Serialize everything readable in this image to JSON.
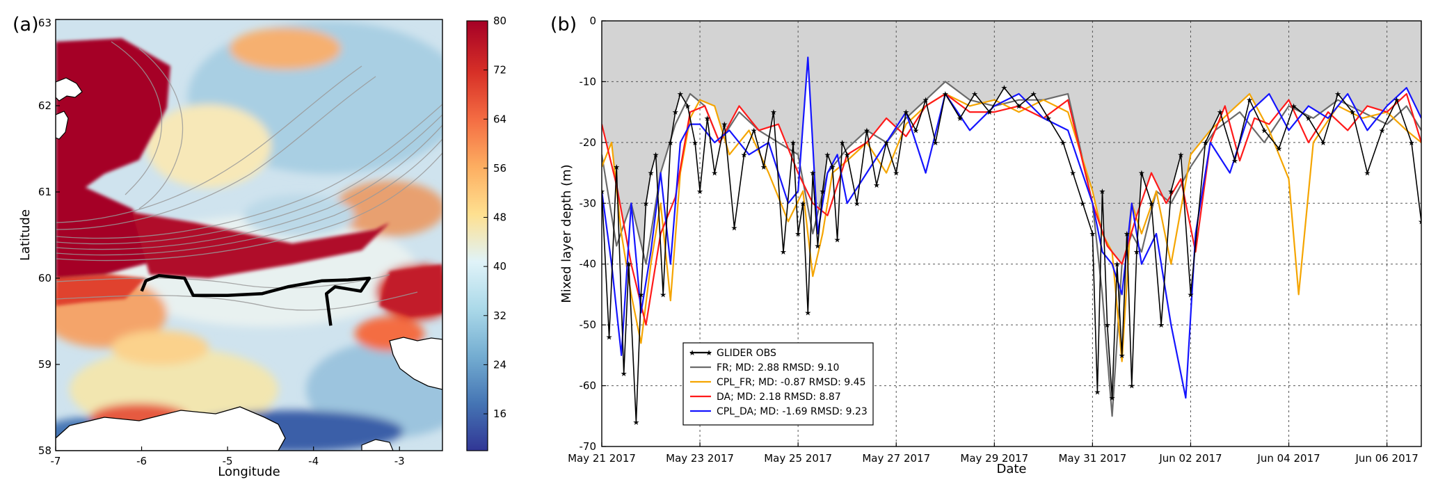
{
  "chart_data": [
    {
      "panel_label": "(a)",
      "type": "heatmap",
      "title": "",
      "xlabel": "Longitude",
      "ylabel": "Latitude",
      "xlim": [
        -7,
        -2.5
      ],
      "ylim": [
        58,
        63
      ],
      "xticks": [
        -7,
        -6,
        -5,
        -4,
        -3
      ],
      "yticks": [
        58,
        59,
        60,
        61,
        62,
        63
      ],
      "colorbar": {
        "min": 10,
        "max": 80,
        "ticks": [
          16,
          24,
          32,
          40,
          48,
          56,
          64,
          72,
          80
        ],
        "colors": [
          "#313695",
          "#4575b4",
          "#74add1",
          "#abd9e9",
          "#e0f3f8",
          "#fee090",
          "#fdae61",
          "#f46d43",
          "#d73027",
          "#a50026"
        ]
      },
      "glider_track": [
        [
          -6.0,
          59.85
        ],
        [
          -5.95,
          59.97
        ],
        [
          -5.8,
          60.03
        ],
        [
          -5.5,
          60.0
        ],
        [
          -5.45,
          59.9
        ],
        [
          -5.4,
          59.8
        ],
        [
          -5.0,
          59.8
        ],
        [
          -4.6,
          59.82
        ],
        [
          -4.3,
          59.9
        ],
        [
          -3.9,
          59.97
        ],
        [
          -3.6,
          59.98
        ],
        [
          -3.35,
          60.0
        ],
        [
          -3.45,
          59.85
        ],
        [
          -3.75,
          59.9
        ],
        [
          -3.85,
          59.82
        ],
        [
          -3.8,
          59.45
        ]
      ]
    },
    {
      "panel_label": "(b)",
      "type": "line",
      "title": "",
      "xlabel": "Date",
      "ylabel": "Mixed layer depth (m)",
      "ylim": [
        -70,
        0
      ],
      "yticks": [
        0,
        -10,
        -20,
        -30,
        -40,
        -50,
        -60,
        -70
      ],
      "xlim": [
        0,
        16.7
      ],
      "xtick_positions": [
        0,
        2,
        4,
        6,
        8,
        10,
        12,
        14,
        16
      ],
      "xtick_labels": [
        "May 21 2017",
        "May 23 2017",
        "May 25 2017",
        "May 27 2017",
        "May 29 2017",
        "May 31 2017",
        "Jun 02 2017",
        "Jun 04 2017",
        "Jun 06 2017"
      ],
      "x_units": "days since May 21 2017",
      "grid": true,
      "legend_position": "lower-left",
      "series": [
        {
          "name": "GLIDER OBS",
          "color": "#000000",
          "marker": "star",
          "x": [
            0.0,
            0.15,
            0.3,
            0.45,
            0.55,
            0.7,
            0.8,
            0.9,
            1.0,
            1.1,
            1.25,
            1.4,
            1.5,
            1.6,
            1.75,
            1.9,
            2.0,
            2.15,
            2.3,
            2.5,
            2.7,
            2.9,
            3.1,
            3.3,
            3.5,
            3.7,
            3.9,
            4.0,
            4.1,
            4.2,
            4.3,
            4.4,
            4.5,
            4.6,
            4.7,
            4.8,
            4.9,
            5.0,
            5.2,
            5.4,
            5.6,
            5.8,
            6.0,
            6.2,
            6.4,
            6.6,
            6.8,
            7.0,
            7.3,
            7.6,
            7.9,
            8.2,
            8.5,
            8.8,
            9.1,
            9.4,
            9.6,
            9.8,
            10.0,
            10.1,
            10.2,
            10.3,
            10.4,
            10.5,
            10.6,
            10.7,
            10.8,
            10.9,
            11.0,
            11.2,
            11.4,
            11.6,
            11.8,
            12.0,
            12.3,
            12.6,
            12.9,
            13.2,
            13.5,
            13.8,
            14.1,
            14.4,
            14.7,
            15.0,
            15.3,
            15.6,
            15.9,
            16.2,
            16.5,
            16.7
          ],
          "y": [
            -28,
            -52,
            -24,
            -58,
            -40,
            -66,
            -45,
            -30,
            -25,
            -22,
            -45,
            -20,
            -15,
            -12,
            -14,
            -20,
            -28,
            -16,
            -25,
            -17,
            -34,
            -22,
            -18,
            -24,
            -15,
            -38,
            -20,
            -35,
            -30,
            -48,
            -25,
            -37,
            -28,
            -22,
            -24,
            -36,
            -20,
            -22,
            -30,
            -18,
            -27,
            -20,
            -25,
            -15,
            -18,
            -13,
            -20,
            -12,
            -16,
            -12,
            -15,
            -11,
            -14,
            -12,
            -16,
            -20,
            -25,
            -30,
            -35,
            -61,
            -28,
            -50,
            -62,
            -40,
            -55,
            -35,
            -60,
            -38,
            -25,
            -30,
            -50,
            -28,
            -22,
            -45,
            -20,
            -15,
            -23,
            -13,
            -18,
            -21,
            -14,
            -16,
            -20,
            -12,
            -15,
            -25,
            -18,
            -13,
            -20,
            -33
          ]
        },
        {
          "name": "FR; MD: 2.88 RMSD: 9.10",
          "color": "#6b6b6b",
          "marker": "",
          "x": [
            0.0,
            0.3,
            0.6,
            0.9,
            1.2,
            1.5,
            1.8,
            2.1,
            2.4,
            2.8,
            3.2,
            3.6,
            4.0,
            4.3,
            4.6,
            5.0,
            5.4,
            5.8,
            6.2,
            6.6,
            7.0,
            7.5,
            8.0,
            8.5,
            9.0,
            9.5,
            10.0,
            10.2,
            10.4,
            10.6,
            10.8,
            11.0,
            11.3,
            11.6,
            12.0,
            12.5,
            13.0,
            13.5,
            14.0,
            14.5,
            15.0,
            15.5,
            16.0,
            16.4,
            16.7
          ],
          "y": [
            -22,
            -37,
            -30,
            -40,
            -25,
            -17,
            -12,
            -14,
            -20,
            -15,
            -18,
            -20,
            -22,
            -35,
            -25,
            -21,
            -18,
            -20,
            -16,
            -13,
            -10,
            -13,
            -14,
            -13,
            -13,
            -12,
            -30,
            -45,
            -65,
            -40,
            -35,
            -38,
            -28,
            -30,
            -24,
            -18,
            -15,
            -20,
            -14,
            -16,
            -13,
            -15,
            -17,
            -14,
            -18
          ]
        },
        {
          "name": "CPL_FR; MD: -0.87 RMSD: 9.45",
          "color": "#f5a500",
          "marker": "",
          "x": [
            0.0,
            0.2,
            0.4,
            0.6,
            0.8,
            1.0,
            1.2,
            1.4,
            1.6,
            1.8,
            2.0,
            2.3,
            2.6,
            3.0,
            3.4,
            3.8,
            4.1,
            4.3,
            4.5,
            4.7,
            5.0,
            5.4,
            5.8,
            6.2,
            6.6,
            7.0,
            7.5,
            8.0,
            8.5,
            9.0,
            9.5,
            10.0,
            10.2,
            10.4,
            10.6,
            10.8,
            11.0,
            11.3,
            11.6,
            12.0,
            12.4,
            12.8,
            13.2,
            13.6,
            14.0,
            14.2,
            14.5,
            15.0,
            15.5,
            16.0,
            16.4,
            16.7
          ],
          "y": [
            -24,
            -20,
            -35,
            -45,
            -53,
            -40,
            -30,
            -46,
            -25,
            -16,
            -13,
            -14,
            -22,
            -18,
            -25,
            -33,
            -28,
            -42,
            -35,
            -25,
            -23,
            -20,
            -25,
            -17,
            -14,
            -12,
            -14,
            -13,
            -15,
            -13,
            -15,
            -28,
            -35,
            -38,
            -56,
            -30,
            -35,
            -28,
            -40,
            -22,
            -18,
            -15,
            -12,
            -18,
            -26,
            -45,
            -20,
            -14,
            -16,
            -15,
            -18,
            -20
          ]
        },
        {
          "name": "DA; MD: 2.18 RMSD: 8.87",
          "color": "#ff1a1a",
          "marker": "",
          "x": [
            0.0,
            0.3,
            0.6,
            0.9,
            1.2,
            1.5,
            1.8,
            2.1,
            2.4,
            2.8,
            3.2,
            3.6,
            4.0,
            4.3,
            4.6,
            5.0,
            5.4,
            5.8,
            6.2,
            6.6,
            7.0,
            7.5,
            8.0,
            8.5,
            9.0,
            9.5,
            10.0,
            10.3,
            10.6,
            10.9,
            11.2,
            11.5,
            11.8,
            12.1,
            12.4,
            12.7,
            13.0,
            13.3,
            13.6,
            14.0,
            14.4,
            14.8,
            15.2,
            15.6,
            16.0,
            16.4,
            16.7
          ],
          "y": [
            -17,
            -27,
            -40,
            -50,
            -35,
            -29,
            -15,
            -14,
            -20,
            -14,
            -18,
            -17,
            -25,
            -30,
            -32,
            -22,
            -20,
            -16,
            -19,
            -14,
            -12,
            -15,
            -15,
            -14,
            -16,
            -13,
            -30,
            -37,
            -40,
            -32,
            -25,
            -30,
            -26,
            -38,
            -20,
            -14,
            -23,
            -16,
            -17,
            -13,
            -20,
            -15,
            -18,
            -14,
            -15,
            -12,
            -20
          ]
        },
        {
          "name": "CPL_DA; MD: -1.69 RMSD: 9.23",
          "color": "#1414ff",
          "marker": "",
          "x": [
            0.0,
            0.2,
            0.4,
            0.6,
            0.8,
            1.0,
            1.2,
            1.4,
            1.6,
            1.8,
            2.0,
            2.3,
            2.6,
            3.0,
            3.4,
            3.8,
            4.0,
            4.2,
            4.4,
            4.6,
            4.8,
            5.0,
            5.4,
            5.8,
            6.2,
            6.6,
            7.0,
            7.5,
            8.0,
            8.5,
            9.0,
            9.5,
            10.0,
            10.2,
            10.4,
            10.6,
            10.8,
            11.0,
            11.3,
            11.6,
            11.9,
            12.1,
            12.4,
            12.8,
            13.2,
            13.6,
            14.0,
            14.4,
            14.8,
            15.2,
            15.6,
            16.0,
            16.4,
            16.7
          ],
          "y": [
            -28,
            -40,
            -55,
            -30,
            -48,
            -38,
            -25,
            -40,
            -20,
            -17,
            -17,
            -20,
            -18,
            -22,
            -20,
            -30,
            -28,
            -6,
            -35,
            -25,
            -22,
            -30,
            -25,
            -20,
            -15,
            -25,
            -12,
            -18,
            -14,
            -12,
            -16,
            -18,
            -30,
            -38,
            -40,
            -45,
            -30,
            -40,
            -35,
            -50,
            -62,
            -35,
            -20,
            -25,
            -15,
            -12,
            -18,
            -14,
            -16,
            -12,
            -18,
            -14,
            -11,
            -16
          ]
        }
      ]
    }
  ]
}
